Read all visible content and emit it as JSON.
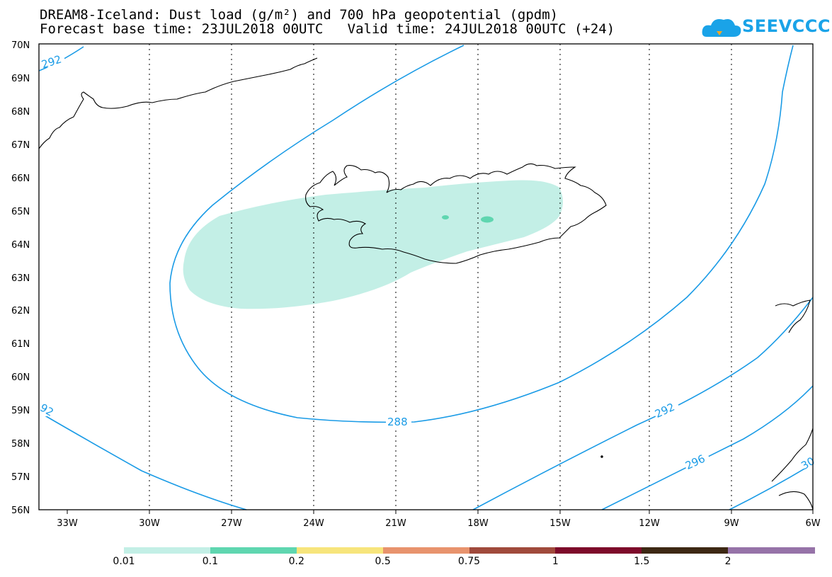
{
  "title_line1": "DREAM8-Iceland: Dust load (g/m²) and 700 hPa geopotential (gpdm)",
  "title_line2": "Forecast base time: 23JUL2018 00UTC   Valid time: 24JUL2018 00UTC (+24)",
  "logo": {
    "text": "SEEVCCC",
    "icon": "cloud-logo-icon",
    "color": "#1aa3e8"
  },
  "axes": {
    "lat_labels": [
      "70N",
      "69N",
      "68N",
      "67N",
      "66N",
      "65N",
      "64N",
      "63N",
      "62N",
      "61N",
      "60N",
      "59N",
      "58N",
      "57N",
      "56N"
    ],
    "lon_labels": [
      "33W",
      "30W",
      "27W",
      "24W",
      "21W",
      "18W",
      "15W",
      "12W",
      "9W",
      "6W"
    ]
  },
  "contours": {
    "color": "#1a9be6",
    "labels": [
      "292",
      "92",
      "288",
      "292",
      "296",
      "30"
    ]
  },
  "dust_colors": {
    "light": "#c3efe6",
    "medium": "#5fd6b0"
  },
  "legend": {
    "colors": [
      "#c3efe6",
      "#5fd6b0",
      "#f7e57c",
      "#e8936d",
      "#a04a3c",
      "#7d0a2a",
      "#3d2814",
      "#9673a8"
    ],
    "labels": [
      "0.01",
      "0.1",
      "0.2",
      "0.5",
      "0.75",
      "1",
      "1.5",
      "2"
    ]
  }
}
